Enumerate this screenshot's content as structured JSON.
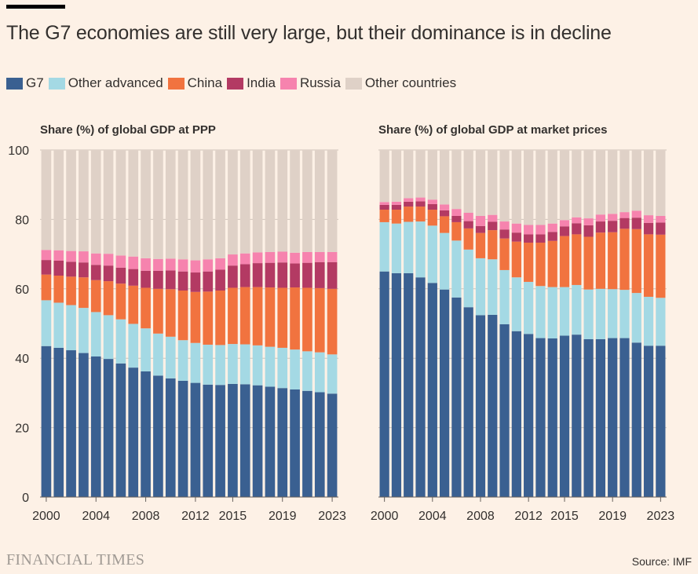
{
  "header": {
    "title": "The G7 economies are still very large, but their dominance is in decline"
  },
  "footer": {
    "logo_text": "FINANCIAL TIMES",
    "source": "Source: IMF"
  },
  "colors": {
    "G7": "#3a6091",
    "Other advanced": "#a4d9e4",
    "China": "#f1733f",
    "India": "#b33a63",
    "Russia": "#f683ae",
    "Other countries": "#dfd1c7",
    "grid": "#cfc4ba",
    "text": "#33302e"
  },
  "legend": [
    "G7",
    "Other advanced",
    "China",
    "India",
    "Russia",
    "Other countries"
  ],
  "chart_data": [
    {
      "type": "bar",
      "stacked": true,
      "title": "Share (%) of global GDP at PPP",
      "ylim": [
        0,
        100
      ],
      "yticks": [
        0,
        20,
        40,
        60,
        80,
        100
      ],
      "categories": [
        "2000",
        "2001",
        "2002",
        "2003",
        "2004",
        "2005",
        "2006",
        "2007",
        "2008",
        "2009",
        "2010",
        "2011",
        "2012",
        "2013",
        "2014",
        "2015",
        "2016",
        "2017",
        "2018",
        "2019",
        "2020",
        "2021",
        "2022",
        "2023"
      ],
      "xtick_labels": [
        "2000",
        "2004",
        "2008",
        "2012",
        "2015",
        "2019",
        "2023"
      ],
      "grid": true,
      "series": [
        {
          "name": "G7",
          "values": [
            43.5,
            43.0,
            42.3,
            41.5,
            40.5,
            39.8,
            38.5,
            37.3,
            36.2,
            35.0,
            34.2,
            33.5,
            32.9,
            32.4,
            32.3,
            32.6,
            32.5,
            32.2,
            31.8,
            31.4,
            31.0,
            30.6,
            30.2,
            29.8
          ]
        },
        {
          "name": "Other advanced",
          "values": [
            13.2,
            13.0,
            13.0,
            13.0,
            12.8,
            12.6,
            12.7,
            12.6,
            12.4,
            12.1,
            12.0,
            11.7,
            11.5,
            11.5,
            11.5,
            11.5,
            11.5,
            11.5,
            11.5,
            11.6,
            11.5,
            11.4,
            11.5,
            11.3
          ]
        },
        {
          "name": "China",
          "values": [
            7.4,
            7.8,
            8.2,
            8.8,
            9.2,
            9.8,
            10.3,
            11.0,
            11.7,
            12.9,
            13.7,
            14.3,
            14.7,
            15.3,
            15.7,
            16.2,
            16.5,
            16.8,
            17.1,
            17.3,
            17.9,
            18.3,
            18.5,
            18.9
          ]
        },
        {
          "name": "India",
          "values": [
            4.2,
            4.3,
            4.3,
            4.3,
            4.4,
            4.5,
            4.6,
            4.8,
            4.9,
            5.2,
            5.4,
            5.5,
            5.6,
            5.8,
            6.0,
            6.4,
            6.6,
            6.9,
            7.1,
            7.3,
            6.9,
            7.2,
            7.5,
            7.7
          ]
        },
        {
          "name": "Russia",
          "values": [
            2.9,
            3.0,
            3.1,
            3.2,
            3.3,
            3.4,
            3.5,
            3.6,
            3.6,
            3.4,
            3.4,
            3.5,
            3.5,
            3.5,
            3.3,
            3.2,
            3.1,
            3.1,
            3.1,
            3.1,
            3.1,
            3.1,
            2.9,
            2.9
          ]
        },
        {
          "name": "Other countries",
          "values": [
            28.8,
            28.9,
            29.1,
            29.2,
            29.8,
            29.9,
            30.4,
            30.7,
            31.2,
            31.4,
            31.3,
            31.5,
            31.8,
            31.5,
            31.2,
            30.1,
            29.8,
            29.5,
            29.4,
            29.3,
            29.6,
            29.4,
            29.4,
            29.4
          ]
        }
      ]
    },
    {
      "type": "bar",
      "stacked": true,
      "title": "Share (%) of global GDP at market prices",
      "ylim": [
        0,
        100
      ],
      "yticks": [
        0,
        20,
        40,
        60,
        80,
        100
      ],
      "categories": [
        "2000",
        "2001",
        "2002",
        "2003",
        "2004",
        "2005",
        "2006",
        "2007",
        "2008",
        "2009",
        "2010",
        "2011",
        "2012",
        "2013",
        "2014",
        "2015",
        "2016",
        "2017",
        "2018",
        "2019",
        "2020",
        "2021",
        "2022",
        "2023"
      ],
      "xtick_labels": [
        "2000",
        "2004",
        "2008",
        "2012",
        "2015",
        "2019",
        "2023"
      ],
      "grid": true,
      "series": [
        {
          "name": "G7",
          "values": [
            65.0,
            64.5,
            64.5,
            63.3,
            61.7,
            59.8,
            57.5,
            54.7,
            52.4,
            52.5,
            49.8,
            47.8,
            47.0,
            45.8,
            45.7,
            46.5,
            46.8,
            45.5,
            45.5,
            45.8,
            45.8,
            44.5,
            43.6,
            43.6
          ]
        },
        {
          "name": "Other advanced",
          "values": [
            14.2,
            14.3,
            14.8,
            16.1,
            16.5,
            16.3,
            16.4,
            16.6,
            16.4,
            16.0,
            15.6,
            15.5,
            15.0,
            15.0,
            14.8,
            14.0,
            14.3,
            14.3,
            14.5,
            14.1,
            13.9,
            14.3,
            14.1,
            13.8
          ]
        },
        {
          "name": "China",
          "values": [
            3.6,
            4.0,
            4.4,
            4.3,
            4.6,
            4.8,
            5.3,
            6.1,
            7.3,
            8.4,
            9.1,
            10.3,
            11.3,
            12.5,
            13.3,
            14.7,
            14.6,
            15.2,
            16.2,
            16.4,
            17.6,
            18.4,
            18.0,
            18.2
          ]
        },
        {
          "name": "India",
          "values": [
            1.4,
            1.4,
            1.4,
            1.5,
            1.6,
            1.7,
            1.8,
            2.1,
            2.0,
            2.4,
            2.6,
            2.6,
            2.4,
            2.4,
            2.6,
            2.8,
            3.2,
            3.3,
            3.2,
            3.3,
            3.1,
            3.3,
            3.3,
            3.5
          ]
        },
        {
          "name": "Russia",
          "values": [
            0.8,
            0.9,
            1.0,
            1.1,
            1.3,
            1.7,
            2.0,
            2.4,
            2.9,
            2.0,
            2.3,
            2.6,
            2.7,
            2.7,
            2.4,
            1.8,
            1.7,
            2.0,
            2.0,
            2.0,
            1.7,
            2.0,
            2.2,
            1.9
          ]
        },
        {
          "name": "Other countries",
          "values": [
            15.0,
            14.9,
            13.9,
            13.7,
            14.3,
            15.7,
            17.0,
            18.1,
            19.0,
            18.7,
            20.6,
            21.2,
            21.6,
            21.6,
            21.2,
            20.2,
            19.4,
            19.7,
            18.6,
            18.4,
            17.9,
            17.5,
            18.8,
            19.0
          ]
        }
      ]
    }
  ]
}
